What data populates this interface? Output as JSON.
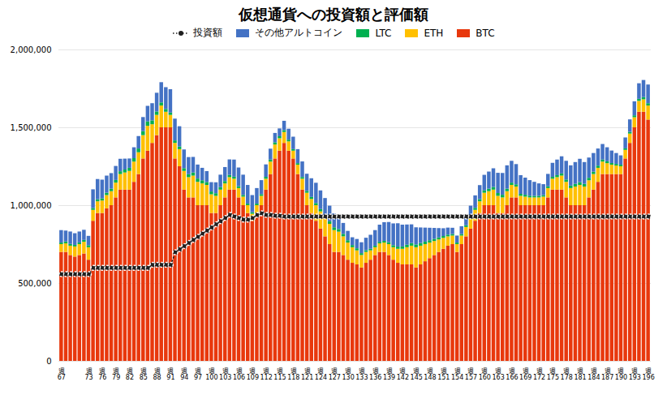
{
  "chart_data": {
    "type": "bar",
    "stacked": true,
    "title": "仮想通貨への投資額と評価額",
    "legend": "top",
    "grid": true,
    "ylim": [
      0,
      2000000
    ],
    "yticks": [
      0,
      {
        "value": 500000,
        "label": "500,000"
      },
      {
        "value": 1000000,
        "label": "1,000,000"
      },
      {
        "value": 1500000,
        "label": "1,500,000"
      },
      {
        "value": 2000000,
        "label": "2,000,000"
      }
    ],
    "categories": [
      "週\n67",
      null,
      null,
      null,
      null,
      null,
      "週\n73",
      null,
      null,
      "週\n76",
      null,
      null,
      "週\n79",
      null,
      null,
      "週\n82",
      null,
      null,
      "週\n85",
      null,
      null,
      "週\n88",
      null,
      null,
      "週\n91",
      null,
      null,
      "週\n94",
      null,
      null,
      "週\n97",
      null,
      null,
      "週\n100",
      null,
      null,
      "週\n103",
      null,
      null,
      "週\n106",
      null,
      null,
      "週\n109",
      null,
      null,
      "週\n112",
      null,
      null,
      "週\n115",
      null,
      null,
      "週\n118",
      null,
      null,
      "週\n121",
      null,
      null,
      "週\n124",
      null,
      null,
      "週\n127",
      null,
      null,
      "週\n130",
      null,
      null,
      "週\n133",
      null,
      null,
      "週\n136",
      null,
      null,
      "週\n139",
      null,
      null,
      "週\n142",
      null,
      null,
      "週\n145",
      null,
      null,
      "週\n148",
      null,
      null,
      "週\n151",
      null,
      null,
      "週\n154",
      null,
      null,
      "週\n157",
      null,
      null,
      "週\n160",
      null,
      null,
      "週\n163",
      null,
      null,
      "週\n166",
      null,
      null,
      "週\n169",
      null,
      null,
      "週\n172",
      null,
      null,
      "週\n175",
      null,
      null,
      "週\n178",
      null,
      null,
      "週\n181",
      null,
      null,
      "週\n184",
      null,
      null,
      "週\n187",
      null,
      null,
      "週\n190",
      null,
      null,
      "週\n193",
      null,
      null,
      "週\n196"
    ],
    "series": [
      {
        "name": "BTC",
        "color": "#E8380D",
        "values": [
          700000,
          700000,
          680000,
          670000,
          680000,
          690000,
          650000,
          900000,
          950000,
          950000,
          980000,
          1000000,
          1050000,
          1100000,
          1100000,
          1100000,
          1150000,
          1200000,
          1300000,
          1350000,
          1400000,
          1450000,
          1500000,
          1500000,
          1500000,
          1300000,
          1250000,
          1100000,
          1050000,
          1050000,
          1000000,
          1000000,
          1000000,
          950000,
          950000,
          1000000,
          1050000,
          1100000,
          1100000,
          1050000,
          1000000,
          950000,
          900000,
          950000,
          1000000,
          1100000,
          1200000,
          1300000,
          1350000,
          1400000,
          1350000,
          1300000,
          1200000,
          1100000,
          1000000,
          950000,
          900000,
          850000,
          800000,
          750000,
          700000,
          700000,
          680000,
          650000,
          630000,
          620000,
          600000,
          630000,
          650000,
          680000,
          700000,
          700000,
          680000,
          650000,
          630000,
          620000,
          620000,
          620000,
          600000,
          620000,
          640000,
          660000,
          680000,
          700000,
          720000,
          740000,
          750000,
          700000,
          750000,
          800000,
          850000,
          900000,
          950000,
          1000000,
          1000000,
          1000000,
          950000,
          950000,
          1000000,
          1050000,
          1050000,
          1000000,
          1000000,
          1000000,
          1000000,
          1000000,
          1000000,
          1050000,
          1100000,
          1100000,
          1100000,
          1050000,
          1000000,
          1000000,
          1000000,
          1000000,
          1050000,
          1100000,
          1150000,
          1200000,
          1200000,
          1200000,
          1200000,
          1200000,
          1300000,
          1400000,
          1500000,
          1600000,
          1600000,
          1550000
        ]
      },
      {
        "name": "ETH",
        "color": "#FFC000",
        "values": [
          50000,
          55000,
          60000,
          65000,
          70000,
          75000,
          80000,
          70000,
          75000,
          80000,
          85000,
          90000,
          95000,
          100000,
          110000,
          120000,
          130000,
          140000,
          150000,
          160000,
          120000,
          130000,
          140000,
          100000,
          80000,
          100000,
          110000,
          120000,
          130000,
          140000,
          150000,
          140000,
          130000,
          120000,
          110000,
          100000,
          90000,
          80000,
          70000,
          60000,
          55000,
          50000,
          45000,
          50000,
          60000,
          70000,
          80000,
          90000,
          80000,
          70000,
          60000,
          50000,
          60000,
          70000,
          80000,
          90000,
          100000,
          110000,
          120000,
          130000,
          140000,
          130000,
          120000,
          110000,
          100000,
          90000,
          80000,
          70000,
          60000,
          50000,
          55000,
          60000,
          70000,
          80000,
          90000,
          100000,
          110000,
          120000,
          130000,
          120000,
          110000,
          100000,
          90000,
          80000,
          70000,
          60000,
          55000,
          50000,
          55000,
          60000,
          65000,
          70000,
          75000,
          80000,
          90000,
          100000,
          110000,
          100000,
          90000,
          80000,
          70000,
          60000,
          55000,
          50000,
          50000,
          50000,
          55000,
          60000,
          70000,
          80000,
          90000,
          100000,
          110000,
          120000,
          130000,
          120000,
          110000,
          100000,
          90000,
          80000,
          70000,
          60000,
          55000,
          50000,
          55000,
          60000,
          65000,
          70000,
          80000,
          90000
        ]
      },
      {
        "name": "LTC",
        "color": "#00B050",
        "values": [
          10000,
          12000,
          11000,
          10000,
          11000,
          12000,
          13000,
          12000,
          13000,
          14000,
          15000,
          16000,
          17000,
          18000,
          19000,
          20000,
          22000,
          24000,
          26000,
          28000,
          25000,
          22000,
          20000,
          18000,
          15000,
          16000,
          17000,
          18000,
          19000,
          20000,
          21000,
          20000,
          19000,
          18000,
          17000,
          16000,
          15000,
          14000,
          13000,
          12000,
          11000,
          10000,
          10000,
          10000,
          11000,
          12000,
          13000,
          14000,
          13000,
          12000,
          11000,
          10000,
          10000,
          11000,
          12000,
          13000,
          14000,
          15000,
          16000,
          17000,
          18000,
          17000,
          16000,
          15000,
          14000,
          13000,
          12000,
          11000,
          10000,
          10000,
          10000,
          11000,
          12000,
          13000,
          14000,
          15000,
          16000,
          17000,
          18000,
          17000,
          16000,
          15000,
          14000,
          13000,
          12000,
          11000,
          10000,
          10000,
          10000,
          11000,
          12000,
          13000,
          14000,
          15000,
          16000,
          17000,
          18000,
          17000,
          16000,
          15000,
          14000,
          13000,
          12000,
          11000,
          10000,
          10000,
          10000,
          11000,
          12000,
          13000,
          14000,
          15000,
          16000,
          17000,
          18000,
          17000,
          16000,
          15000,
          14000,
          13000,
          12000,
          11000,
          10000,
          10000,
          10000,
          11000,
          12000,
          13000,
          14000,
          15000
        ]
      },
      {
        "name": "その他アルトコイン",
        "color": "#4472C4",
        "values": [
          80000,
          70000,
          80000,
          75000,
          70000,
          65000,
          60000,
          120000,
          130000,
          120000,
          110000,
          100000,
          90000,
          80000,
          70000,
          60000,
          70000,
          80000,
          90000,
          100000,
          110000,
          120000,
          130000,
          140000,
          150000,
          140000,
          130000,
          120000,
          110000,
          100000,
          90000,
          80000,
          70000,
          60000,
          70000,
          80000,
          90000,
          100000,
          110000,
          120000,
          130000,
          120000,
          110000,
          100000,
          90000,
          80000,
          70000,
          60000,
          50000,
          60000,
          70000,
          80000,
          90000,
          100000,
          110000,
          120000,
          130000,
          120000,
          110000,
          100000,
          90000,
          80000,
          70000,
          60000,
          50000,
          60000,
          70000,
          80000,
          90000,
          100000,
          110000,
          120000,
          130000,
          140000,
          150000,
          140000,
          130000,
          120000,
          110000,
          100000,
          90000,
          80000,
          70000,
          60000,
          50000,
          45000,
          40000,
          45000,
          50000,
          60000,
          70000,
          80000,
          90000,
          100000,
          110000,
          120000,
          130000,
          140000,
          150000,
          140000,
          130000,
          120000,
          110000,
          100000,
          90000,
          80000,
          70000,
          80000,
          90000,
          100000,
          110000,
          120000,
          130000,
          140000,
          150000,
          140000,
          130000,
          120000,
          110000,
          100000,
          90000,
          80000,
          70000,
          60000,
          70000,
          80000,
          90000,
          100000,
          110000,
          120000
        ]
      },
      {
        "name": "投資額",
        "type": "line",
        "color": "#1F1F1F",
        "line_style": "dotted",
        "marker": "o",
        "values": [
          560000,
          560000,
          560000,
          560000,
          560000,
          560000,
          560000,
          600000,
          600000,
          600000,
          600000,
          600000,
          600000,
          600000,
          600000,
          600000,
          600000,
          600000,
          600000,
          600000,
          620000,
          620000,
          620000,
          620000,
          620000,
          700000,
          720000,
          740000,
          760000,
          780000,
          800000,
          820000,
          840000,
          860000,
          880000,
          900000,
          920000,
          940000,
          930000,
          920000,
          910000,
          910000,
          920000,
          940000,
          950000,
          940000,
          940000,
          935000,
          935000,
          930000,
          930000,
          930000,
          930000,
          930000,
          930000,
          930000,
          930000,
          930000,
          930000,
          930000,
          930000,
          930000,
          930000,
          930000,
          930000,
          930000,
          930000,
          930000,
          930000,
          930000,
          930000,
          930000,
          930000,
          930000,
          930000,
          930000,
          930000,
          930000,
          930000,
          930000,
          930000,
          930000,
          930000,
          930000,
          930000,
          930000,
          930000,
          930000,
          930000,
          930000,
          930000,
          930000,
          930000,
          930000,
          930000,
          930000,
          930000,
          930000,
          930000,
          930000,
          930000,
          930000,
          930000,
          930000,
          930000,
          930000,
          930000,
          930000,
          930000,
          930000,
          930000,
          930000,
          930000,
          930000,
          930000,
          930000,
          930000,
          930000,
          930000,
          930000,
          930000,
          930000,
          930000,
          930000,
          930000,
          930000,
          930000,
          930000,
          930000,
          930000
        ]
      }
    ]
  }
}
